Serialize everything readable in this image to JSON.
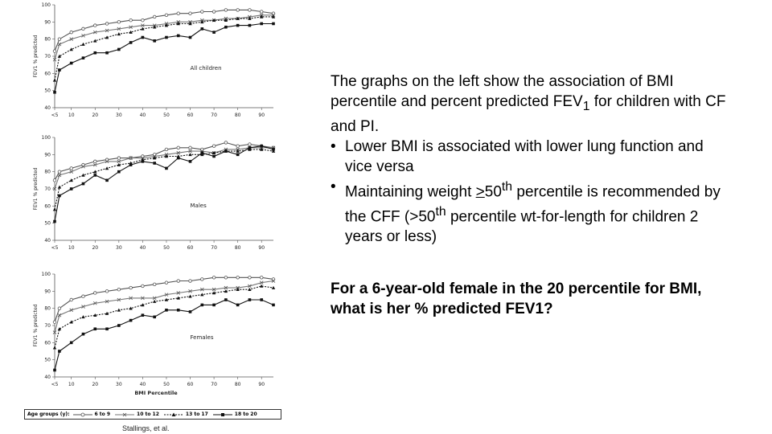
{
  "text": {
    "intro_a": "The graphs on the left show the association of BMI percentile and percent predicted FEV",
    "intro_sub": "1",
    "intro_b": " for children with CF and PI.",
    "bullet_1": "Lower BMI is associated with lower lung function and vice versa",
    "bullet_2_a": "Maintaining weight ",
    "bullet_2_ge": ">",
    "bullet_2_b": "50",
    "bullet_2_sup1": "th",
    "bullet_2_c": " percentile is recommended by the CFF   (>50",
    "bullet_2_sup2": "th",
    "bullet_2_d": " percentile wt-for-length for children 2 years or less)",
    "question": "For a 6-year-old female in the 20 percentile for BMI, what is her % predicted FEV1?",
    "source": "Stallings, et al."
  },
  "legend": {
    "title": "Age groups (y):",
    "items": [
      "6 to 9",
      "10 to 12",
      "13 to 17",
      "18 to 20"
    ]
  },
  "colors": {
    "s1": "#555555",
    "s2": "#777777",
    "s3": "#111111",
    "s4": "#111111"
  },
  "chart_data": [
    {
      "type": "line",
      "title": "All children",
      "ylabel": "FEV1 % predicted",
      "xlabel": "",
      "x_ticks": [
        "<5",
        "10",
        "20",
        "30",
        "40",
        "50",
        "60",
        "70",
        "80",
        "90"
      ],
      "x": [
        3,
        5,
        10,
        15,
        20,
        25,
        30,
        35,
        40,
        45,
        50,
        55,
        60,
        65,
        70,
        75,
        80,
        85,
        90,
        95
      ],
      "ylim": [
        40,
        100
      ],
      "y_ticks": [
        40,
        50,
        60,
        70,
        80,
        90,
        100
      ],
      "grid": false,
      "series": [
        {
          "name": "6 to 9",
          "marker": "circle",
          "values": [
            73,
            80,
            84,
            86,
            88,
            89,
            90,
            91,
            91,
            93,
            94,
            95,
            95,
            96,
            96,
            97,
            97,
            97,
            96,
            95
          ]
        },
        {
          "name": "10 to 12",
          "marker": "x",
          "values": [
            68,
            77,
            80,
            82,
            84,
            85,
            86,
            87,
            88,
            88,
            89,
            90,
            90,
            91,
            91,
            92,
            92,
            93,
            94,
            94
          ]
        },
        {
          "name": "13 to 17",
          "marker": "triangle",
          "values": [
            56,
            70,
            74,
            77,
            79,
            81,
            83,
            84,
            86,
            87,
            88,
            89,
            89,
            90,
            91,
            91,
            92,
            92,
            93,
            93
          ]
        },
        {
          "name": "18 to 20",
          "marker": "square",
          "values": [
            49,
            62,
            66,
            69,
            72,
            72,
            74,
            78,
            81,
            79,
            81,
            82,
            81,
            86,
            84,
            87,
            88,
            88,
            89,
            89
          ]
        }
      ]
    },
    {
      "type": "line",
      "title": "Males",
      "ylabel": "FEV1 % predicted",
      "xlabel": "",
      "x_ticks": [
        "<5",
        "10",
        "20",
        "30",
        "40",
        "50",
        "60",
        "70",
        "80",
        "90"
      ],
      "x": [
        3,
        5,
        10,
        15,
        20,
        25,
        30,
        35,
        40,
        45,
        50,
        55,
        60,
        65,
        70,
        75,
        80,
        85,
        90,
        95
      ],
      "ylim": [
        40,
        100
      ],
      "y_ticks": [
        40,
        50,
        60,
        70,
        80,
        90,
        100
      ],
      "grid": false,
      "series": [
        {
          "name": "6 to 9",
          "marker": "circle",
          "values": [
            75,
            80,
            82,
            84,
            86,
            87,
            88,
            88,
            89,
            90,
            93,
            94,
            94,
            93,
            95,
            97,
            95,
            96,
            95,
            94
          ]
        },
        {
          "name": "10 to 12",
          "marker": "x",
          "values": [
            70,
            78,
            80,
            83,
            84,
            86,
            86,
            88,
            88,
            89,
            90,
            91,
            92,
            92,
            91,
            93,
            93,
            94,
            94,
            94
          ]
        },
        {
          "name": "13 to 17",
          "marker": "triangle",
          "values": [
            58,
            71,
            75,
            78,
            80,
            82,
            84,
            85,
            87,
            88,
            89,
            89,
            90,
            90,
            91,
            92,
            92,
            93,
            93,
            92
          ]
        },
        {
          "name": "18 to 20",
          "marker": "square",
          "values": [
            51,
            66,
            70,
            73,
            78,
            75,
            80,
            84,
            86,
            85,
            82,
            88,
            86,
            91,
            89,
            92,
            90,
            94,
            95,
            93
          ]
        }
      ]
    },
    {
      "type": "line",
      "title": "Females",
      "ylabel": "FEV1 % predicted",
      "xlabel": "BMI Percentile",
      "x_ticks": [
        "<5",
        "10",
        "20",
        "30",
        "40",
        "50",
        "60",
        "70",
        "80",
        "90"
      ],
      "x": [
        3,
        5,
        10,
        15,
        20,
        25,
        30,
        35,
        40,
        45,
        50,
        55,
        60,
        65,
        70,
        75,
        80,
        85,
        90,
        95
      ],
      "ylim": [
        40,
        100
      ],
      "y_ticks": [
        40,
        50,
        60,
        70,
        80,
        90,
        100
      ],
      "grid": false,
      "series": [
        {
          "name": "6 to 9",
          "marker": "circle",
          "values": [
            72,
            80,
            85,
            87,
            89,
            90,
            91,
            92,
            93,
            94,
            95,
            96,
            96,
            97,
            98,
            98,
            98,
            98,
            98,
            97
          ]
        },
        {
          "name": "10 to 12",
          "marker": "x",
          "values": [
            66,
            76,
            79,
            81,
            83,
            84,
            85,
            86,
            86,
            86,
            88,
            89,
            90,
            91,
            91,
            92,
            92,
            93,
            95,
            96
          ]
        },
        {
          "name": "13 to 17",
          "marker": "triangle",
          "values": [
            57,
            68,
            72,
            75,
            76,
            77,
            79,
            80,
            82,
            84,
            85,
            86,
            87,
            88,
            89,
            90,
            91,
            91,
            93,
            92
          ]
        },
        {
          "name": "18 to 20",
          "marker": "square",
          "values": [
            44,
            55,
            60,
            65,
            68,
            68,
            70,
            73,
            76,
            75,
            79,
            79,
            78,
            82,
            82,
            85,
            82,
            85,
            85,
            82
          ]
        }
      ]
    }
  ]
}
